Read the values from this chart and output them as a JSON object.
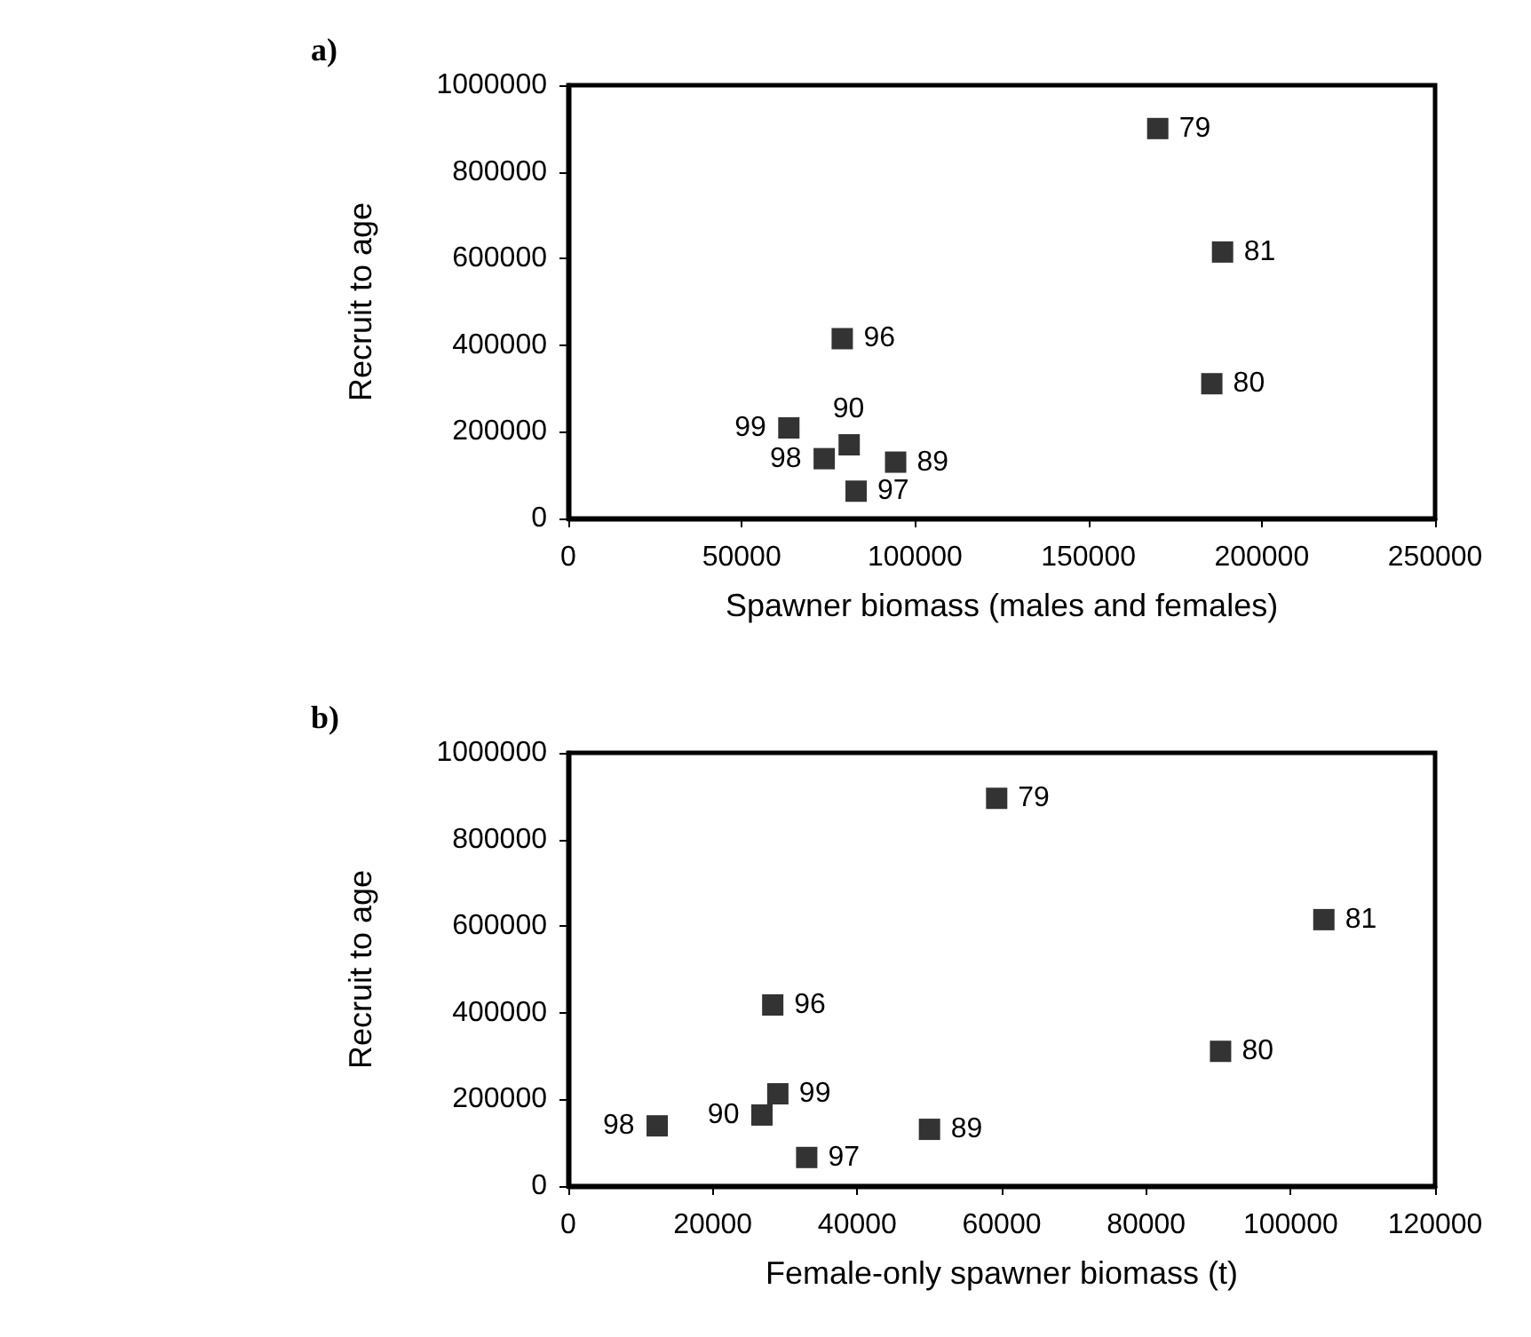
{
  "chart_data": [
    {
      "type": "scatter",
      "title": "a)",
      "xlabel": "Spawner biomass (males and females)",
      "ylabel": "Recruit to age",
      "marker": "square",
      "grid": false,
      "xlim": [
        0,
        250000
      ],
      "xticks": [
        0,
        50000,
        100000,
        150000,
        200000,
        250000
      ],
      "ylim": [
        0,
        1000000
      ],
      "yticks": [
        0,
        200000,
        400000,
        600000,
        800000,
        1000000
      ],
      "series": [
        {
          "color": "#000000",
          "x": [
            170000,
            188700,
            185600,
            79000,
            63600,
            81000,
            73800,
            94400,
            83000
          ],
          "values": [
            900000,
            615000,
            311000,
            415000,
            209000,
            170000,
            138000,
            130000,
            63000
          ]
        }
      ],
      "annotations": [
        {
          "text": "79",
          "x": 170000,
          "y": 900000
        },
        {
          "text": "81",
          "x": 188700,
          "y": 615000
        },
        {
          "text": "80",
          "x": 185600,
          "y": 311000
        },
        {
          "text": "96",
          "x": 79000,
          "y": 415000
        },
        {
          "text": "99",
          "x": 63600,
          "y": 209000
        },
        {
          "text": "90",
          "x": 81000,
          "y": 170000
        },
        {
          "text": "98",
          "x": 73800,
          "y": 138000
        },
        {
          "text": "89",
          "x": 94400,
          "y": 130000
        },
        {
          "text": "97",
          "x": 83000,
          "y": 63000
        }
      ]
    },
    {
      "type": "scatter",
      "title": "b)",
      "xlabel": "Female-only spawner biomass (t)",
      "ylabel": "Recruit to age",
      "marker": "square",
      "grid": false,
      "xlim": [
        0,
        120000
      ],
      "xticks": [
        0,
        20000,
        40000,
        60000,
        80000,
        100000,
        120000
      ],
      "ylim": [
        0,
        1000000
      ],
      "yticks": [
        0,
        200000,
        400000,
        600000,
        800000,
        1000000
      ],
      "series": [
        {
          "color": "#000000",
          "x": [
            59300,
            104600,
            90300,
            28300,
            29000,
            26800,
            12300,
            50000,
            33000
          ],
          "values": [
            895000,
            615000,
            311000,
            418000,
            213000,
            164000,
            139000,
            131000,
            66000
          ]
        }
      ],
      "annotations": [
        {
          "text": "79",
          "x": 59300,
          "y": 895000
        },
        {
          "text": "81",
          "x": 104600,
          "y": 615000
        },
        {
          "text": "80",
          "x": 90300,
          "y": 311000
        },
        {
          "text": "96",
          "x": 28300,
          "y": 418000
        },
        {
          "text": "99",
          "x": 29000,
          "y": 213000
        },
        {
          "text": "90",
          "x": 26800,
          "y": 164000
        },
        {
          "text": "98",
          "x": 12300,
          "y": 139000
        },
        {
          "text": "89",
          "x": 50000,
          "y": 131000
        },
        {
          "text": "97",
          "x": 33000,
          "y": 66000
        }
      ]
    }
  ]
}
